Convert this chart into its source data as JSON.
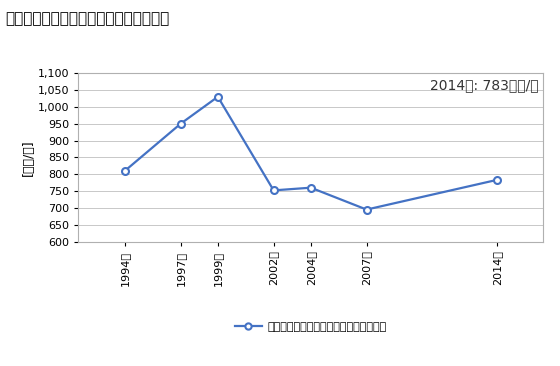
{
  "title": "商業の従業者一人当たり年間商品販売額",
  "ylabel": "[万円/人]",
  "annotation": "2014年: 783万円/人",
  "legend_label": "商業の従業者一人当たり年間商品販売額",
  "years": [
    1994,
    1997,
    1999,
    2002,
    2004,
    2007,
    2014
  ],
  "year_labels": [
    "1994年",
    "1997年",
    "1999年",
    "2002年",
    "2004年",
    "2007年",
    "2014年"
  ],
  "values": [
    810,
    950,
    1030,
    752,
    760,
    695,
    783
  ],
  "ylim": [
    600,
    1100
  ],
  "yticks": [
    600,
    650,
    700,
    750,
    800,
    850,
    900,
    950,
    1000,
    1050,
    1100
  ],
  "line_color": "#4472c4",
  "marker": "o",
  "marker_facecolor": "#ffffff",
  "marker_edgecolor": "#4472c4",
  "marker_size": 5,
  "line_width": 1.6,
  "background_color": "#ffffff",
  "plot_bg_color": "#ffffff",
  "grid_color": "#c8c8c8",
  "title_fontsize": 11,
  "label_fontsize": 9,
  "tick_fontsize": 8,
  "annotation_fontsize": 10
}
